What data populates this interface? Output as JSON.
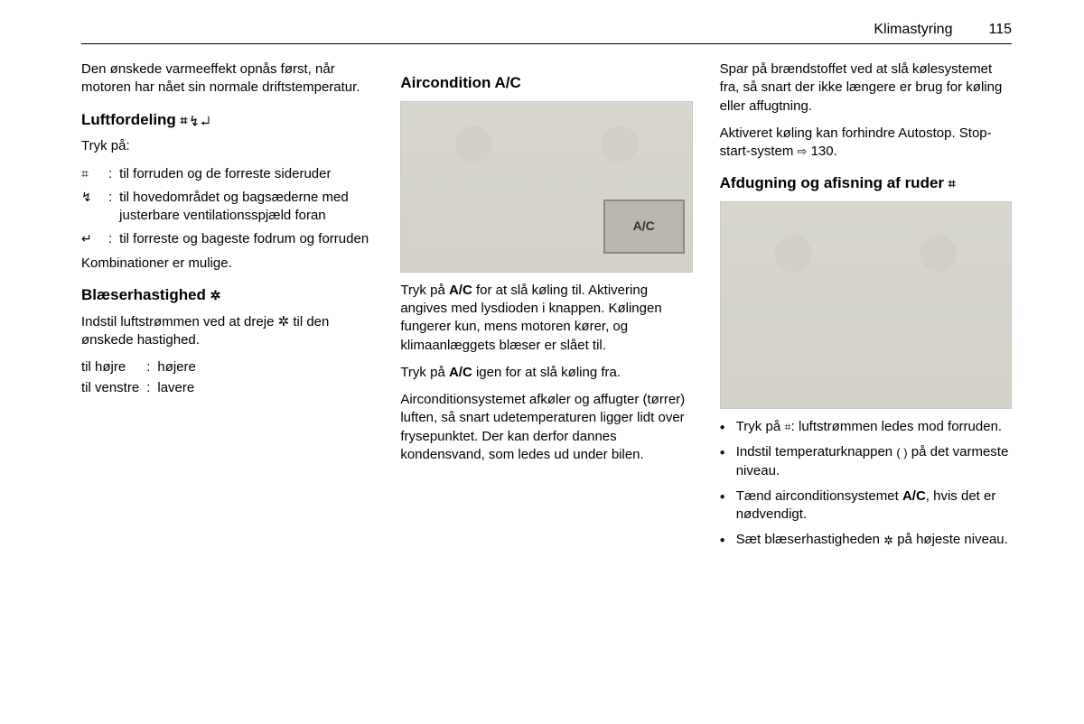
{
  "header": {
    "title": "Klimastyring",
    "page_number": "115"
  },
  "col1": {
    "intro": "Den ønskede varmeeffekt opnås først, når motoren har nået sin normale driftstemperatur.",
    "section_luftfordeling": {
      "title_text": "Luftfordeling ",
      "title_icons": "⌗ ↯ ↵",
      "tryk_pa": "Tryk på:",
      "rows": [
        {
          "sym": "⌗",
          "text": "til forruden og de forreste sideruder"
        },
        {
          "sym": "↯",
          "text": "til hovedområdet og bagsæderne med justerbare ventilationsspjæld foran"
        },
        {
          "sym": "↵",
          "text": "til forreste og bageste fodrum og forruden"
        }
      ],
      "note": "Kombinationer er mulige."
    },
    "section_blaeser": {
      "title_text": "Blæserhastighed ",
      "title_icon": "✲",
      "body": "Indstil luftstrømmen ved at dreje ✲ til den ønskede hastighed.",
      "rows": [
        {
          "label": "til højre",
          "value": "højere"
        },
        {
          "label": "til venstre",
          "value": "lavere"
        }
      ]
    }
  },
  "col2": {
    "section_ac": {
      "title": "Aircondition A/C",
      "image_label": "A/C",
      "para1a": "Tryk på ",
      "para1b": "A/C",
      "para1c": " for at slå køling til. Aktivering angives med lysdioden i knappen. Kølingen fungerer kun, mens motoren kører, og klimaanlæggets blæser er slået til.",
      "para2a": "Tryk på ",
      "para2b": "A/C",
      "para2c": " igen for at slå køling fra.",
      "para3": "Airconditionsystemet afkøler og affugter (tørrer) luften, så snart udetemperaturen ligger lidt over frysepunktet. Der kan derfor dannes kondensvand, som ledes ud under bilen."
    }
  },
  "col3": {
    "para1": "Spar på brændstoffet ved at slå kølesystemet fra, så snart der ikke længere er brug for køling eller affugtning.",
    "para2a": "Aktiveret køling kan forhindre Autostop. Stop-start-system ",
    "para2_xref_icon": "⇨",
    "para2b": " 130.",
    "section_defog": {
      "title_text": "Afdugning og afisning af ruder ",
      "title_icon": "⌗",
      "bullets": [
        {
          "pre": "Tryk på ",
          "icon": "⌗",
          "post": ": luftstrømmen ledes mod forruden."
        },
        {
          "pre": "Indstil temperaturknappen ",
          "icon": "( )",
          "post": " på det varmeste niveau."
        },
        {
          "pre": "Tænd airconditionsystemet ",
          "bold": "A/C",
          "post": ", hvis det er nødvendigt."
        },
        {
          "pre": "Sæt blæserhastigheden ",
          "icon": "✲",
          "post": " på højeste niveau."
        }
      ]
    }
  }
}
